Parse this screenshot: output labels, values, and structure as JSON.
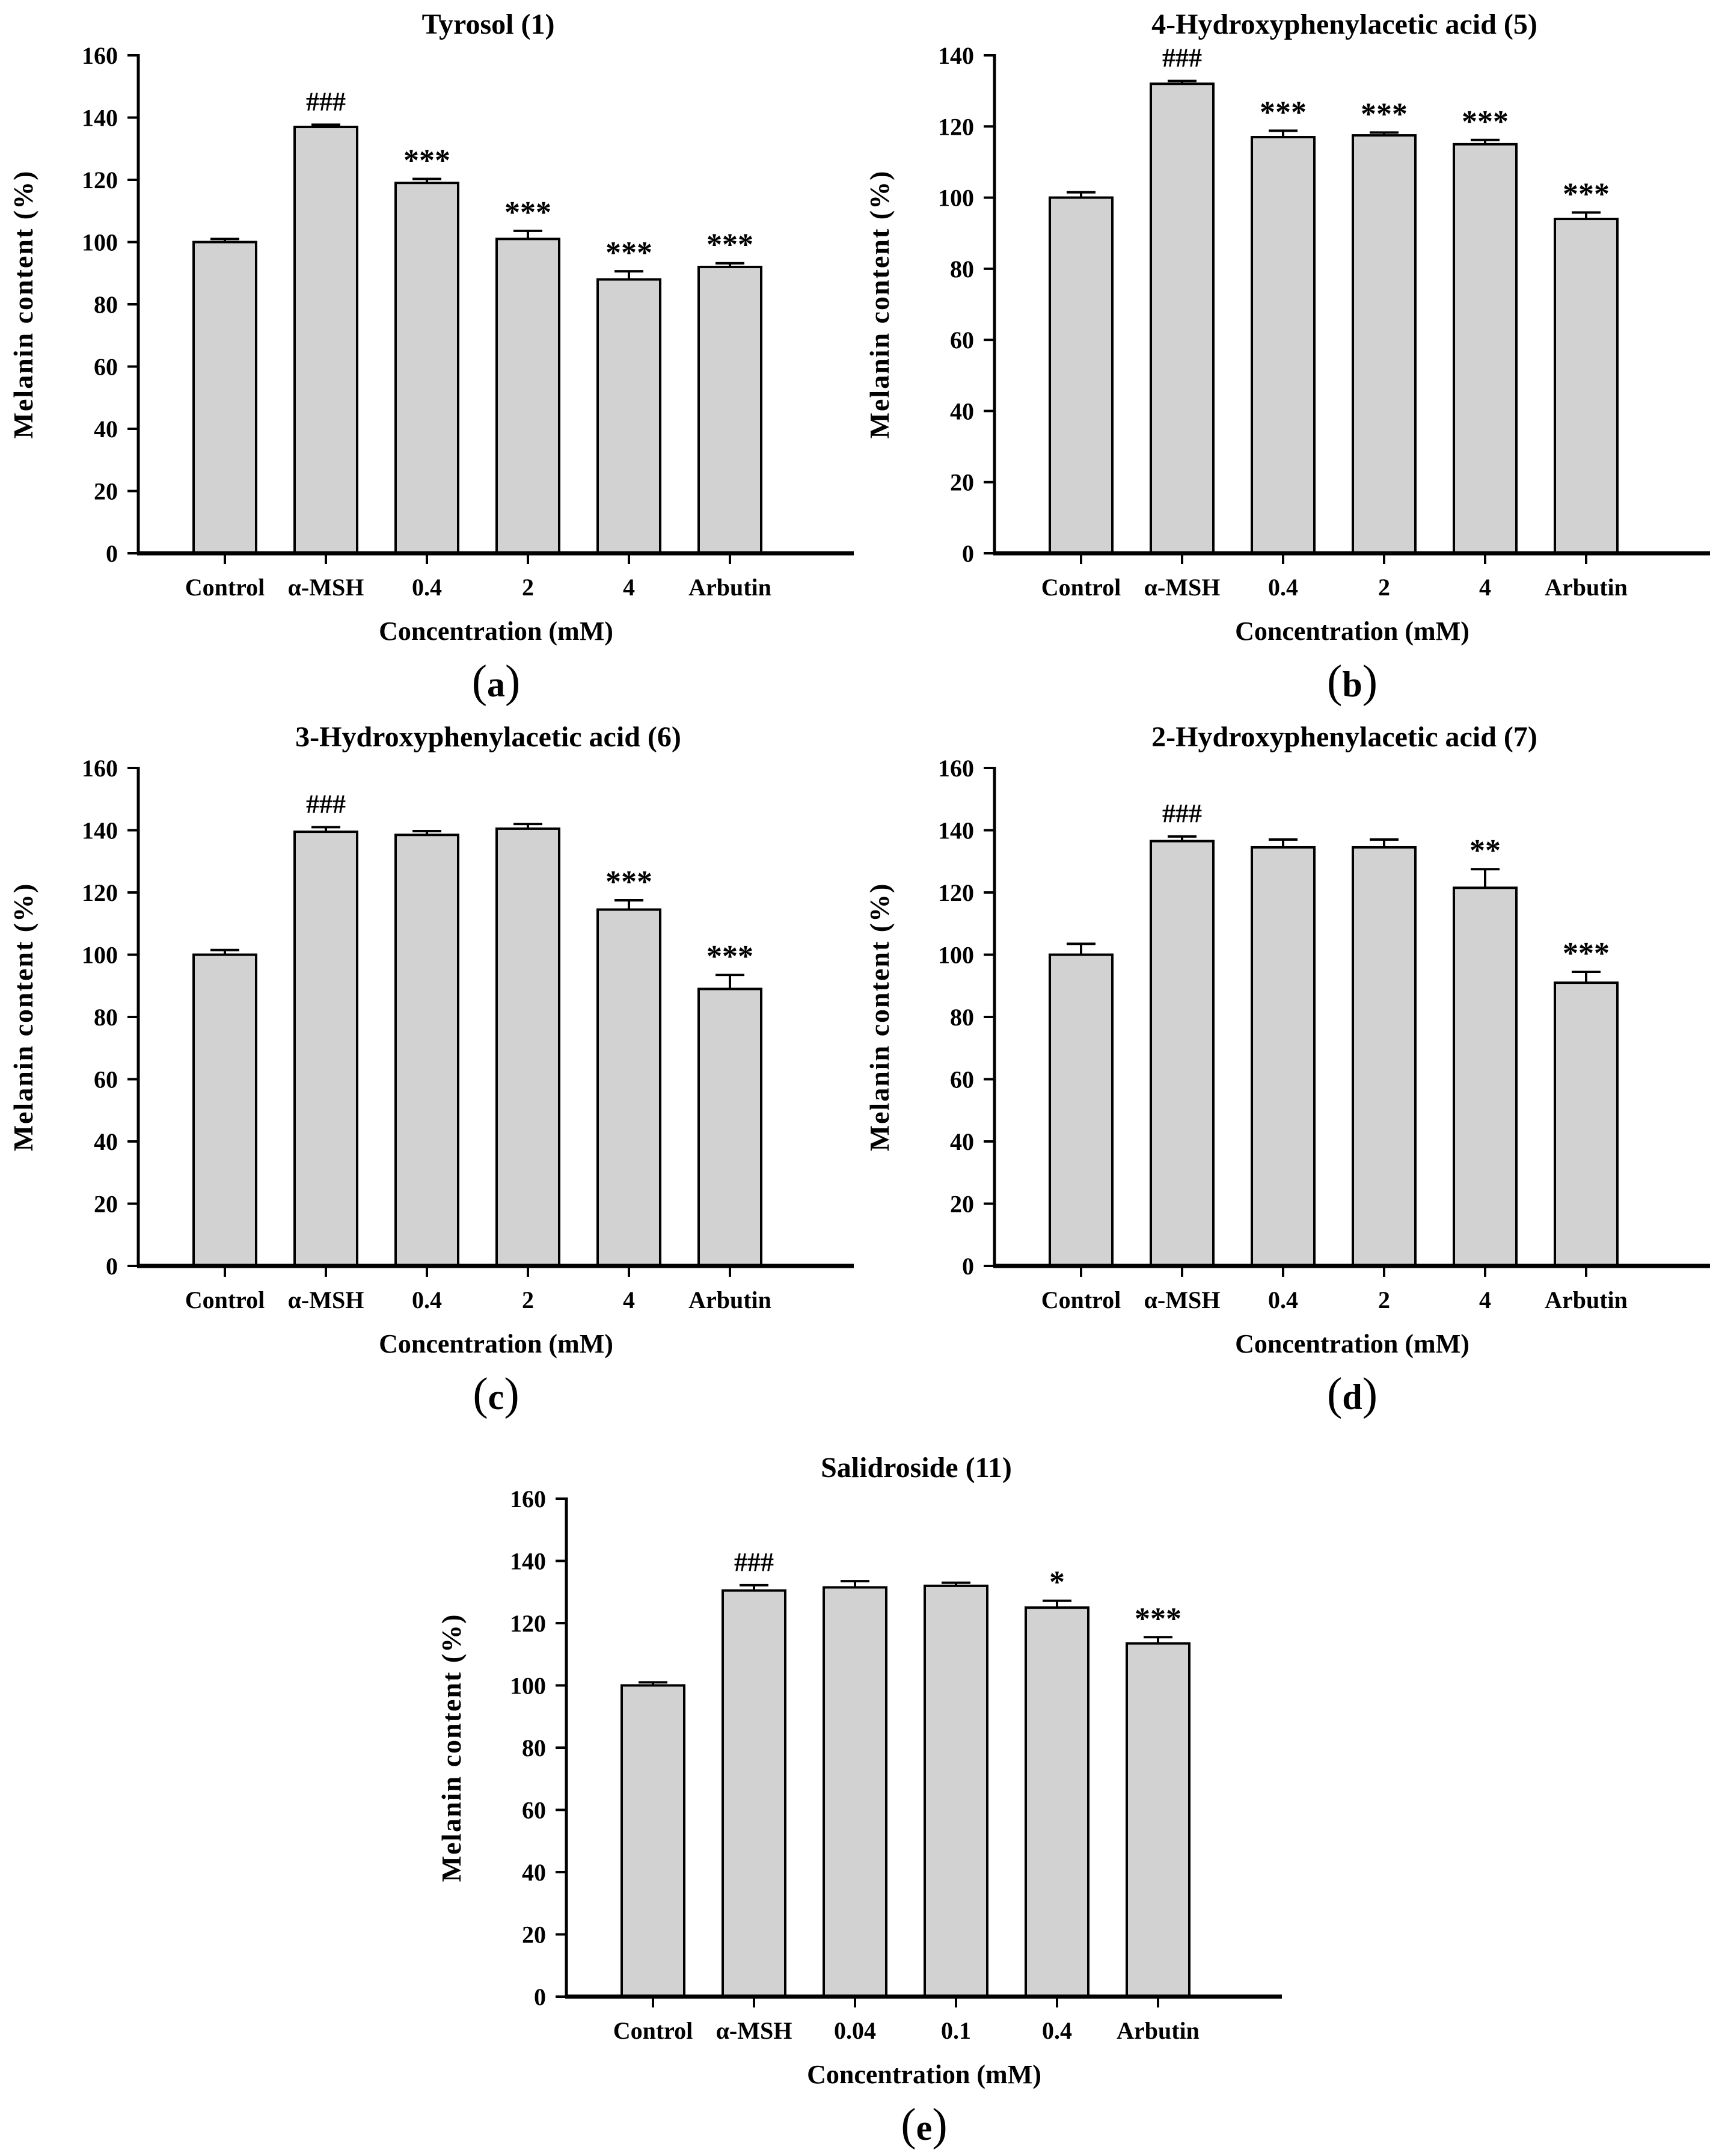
{
  "figure": {
    "description_texts": {
      "shared_ylabel": "Melanin content (%)",
      "shared_xlabel": "Concentration (mM)"
    }
  },
  "chart_data": [
    {
      "type": "bar",
      "panel_label": "(a)",
      "title": "Tyrosol (1)",
      "xlabel": "Concentration (mM)",
      "ylabel": "Melanin content (%)",
      "ylim": [
        0,
        160
      ],
      "yticks": [
        0,
        20,
        40,
        60,
        80,
        100,
        120,
        140,
        160
      ],
      "grid": false,
      "legend": null,
      "bar_fill": "#d2d2d2",
      "bar_stroke": "#000000",
      "categories": [
        "Control",
        "α-MSH",
        "0.4",
        "2",
        "4",
        "Arbutin"
      ],
      "values": [
        100,
        137,
        119,
        101,
        88,
        92
      ],
      "errors": [
        1.0,
        0.7,
        1.3,
        2.6,
        2.6,
        1.2
      ],
      "annotations": [
        "",
        "###",
        "***",
        "***",
        "***",
        "***"
      ]
    },
    {
      "type": "bar",
      "panel_label": "(b)",
      "title": "4-Hydroxyphenylacetic acid (5)",
      "xlabel": "Concentration (mM)",
      "ylabel": "Melanin content (%)",
      "ylim": [
        0,
        140
      ],
      "yticks": [
        0,
        20,
        40,
        60,
        80,
        100,
        120,
        140
      ],
      "grid": false,
      "legend": null,
      "bar_fill": "#d2d2d2",
      "bar_stroke": "#000000",
      "categories": [
        "Control",
        "α-MSH",
        "0.4",
        "2",
        "4",
        "Arbutin"
      ],
      "values": [
        100,
        132,
        117,
        117.5,
        115,
        94
      ],
      "errors": [
        1.5,
        0.8,
        1.8,
        0.8,
        1.2,
        1.8
      ],
      "annotations": [
        "",
        "###",
        "***",
        "***",
        "***",
        "***"
      ]
    },
    {
      "type": "bar",
      "panel_label": "(c)",
      "title": "3-Hydroxyphenylacetic acid (6)",
      "xlabel": "Concentration (mM)",
      "ylabel": "Melanin content (%)",
      "ylim": [
        0,
        160
      ],
      "yticks": [
        0,
        20,
        40,
        60,
        80,
        100,
        120,
        140,
        160
      ],
      "grid": false,
      "legend": null,
      "bar_fill": "#d2d2d2",
      "bar_stroke": "#000000",
      "categories": [
        "Control",
        "α-MSH",
        "0.4",
        "2",
        "4",
        "Arbutin"
      ],
      "values": [
        100,
        139.5,
        138.5,
        140.5,
        114.5,
        89
      ],
      "errors": [
        1.5,
        1.5,
        1.2,
        1.5,
        3.0,
        4.5
      ],
      "annotations": [
        "",
        "###",
        "",
        "",
        "***",
        "***"
      ]
    },
    {
      "type": "bar",
      "panel_label": "(d)",
      "title": "2-Hydroxyphenylacetic acid (7)",
      "xlabel": "Concentration (mM)",
      "ylabel": "Melanin content (%)",
      "ylim": [
        0,
        160
      ],
      "yticks": [
        0,
        20,
        40,
        60,
        80,
        100,
        120,
        140,
        160
      ],
      "grid": false,
      "legend": null,
      "bar_fill": "#d2d2d2",
      "bar_stroke": "#000000",
      "categories": [
        "Control",
        "α-MSH",
        "0.4",
        "2",
        "4",
        "Arbutin"
      ],
      "values": [
        100,
        136.5,
        134.5,
        134.5,
        121.5,
        91
      ],
      "errors": [
        3.5,
        1.5,
        2.5,
        2.5,
        6.0,
        3.5
      ],
      "annotations": [
        "",
        "###",
        "",
        "",
        "**",
        "***"
      ]
    },
    {
      "type": "bar",
      "panel_label": "(e)",
      "title": "Salidroside (11)",
      "xlabel": "Concentration (mM)",
      "ylabel": "Melanin content (%)",
      "ylim": [
        0,
        160
      ],
      "yticks": [
        0,
        20,
        40,
        60,
        80,
        100,
        120,
        140,
        160
      ],
      "grid": false,
      "legend": null,
      "bar_fill": "#d2d2d2",
      "bar_stroke": "#000000",
      "categories": [
        "Control",
        "α-MSH",
        "0.04",
        "0.1",
        "0.4",
        "Arbutin"
      ],
      "values": [
        100,
        130.5,
        131.5,
        132,
        125,
        113.5
      ],
      "errors": [
        1.0,
        1.7,
        2.0,
        1.0,
        2.2,
        2.0
      ],
      "annotations": [
        "",
        "###",
        "",
        "",
        "*",
        "***"
      ]
    }
  ]
}
